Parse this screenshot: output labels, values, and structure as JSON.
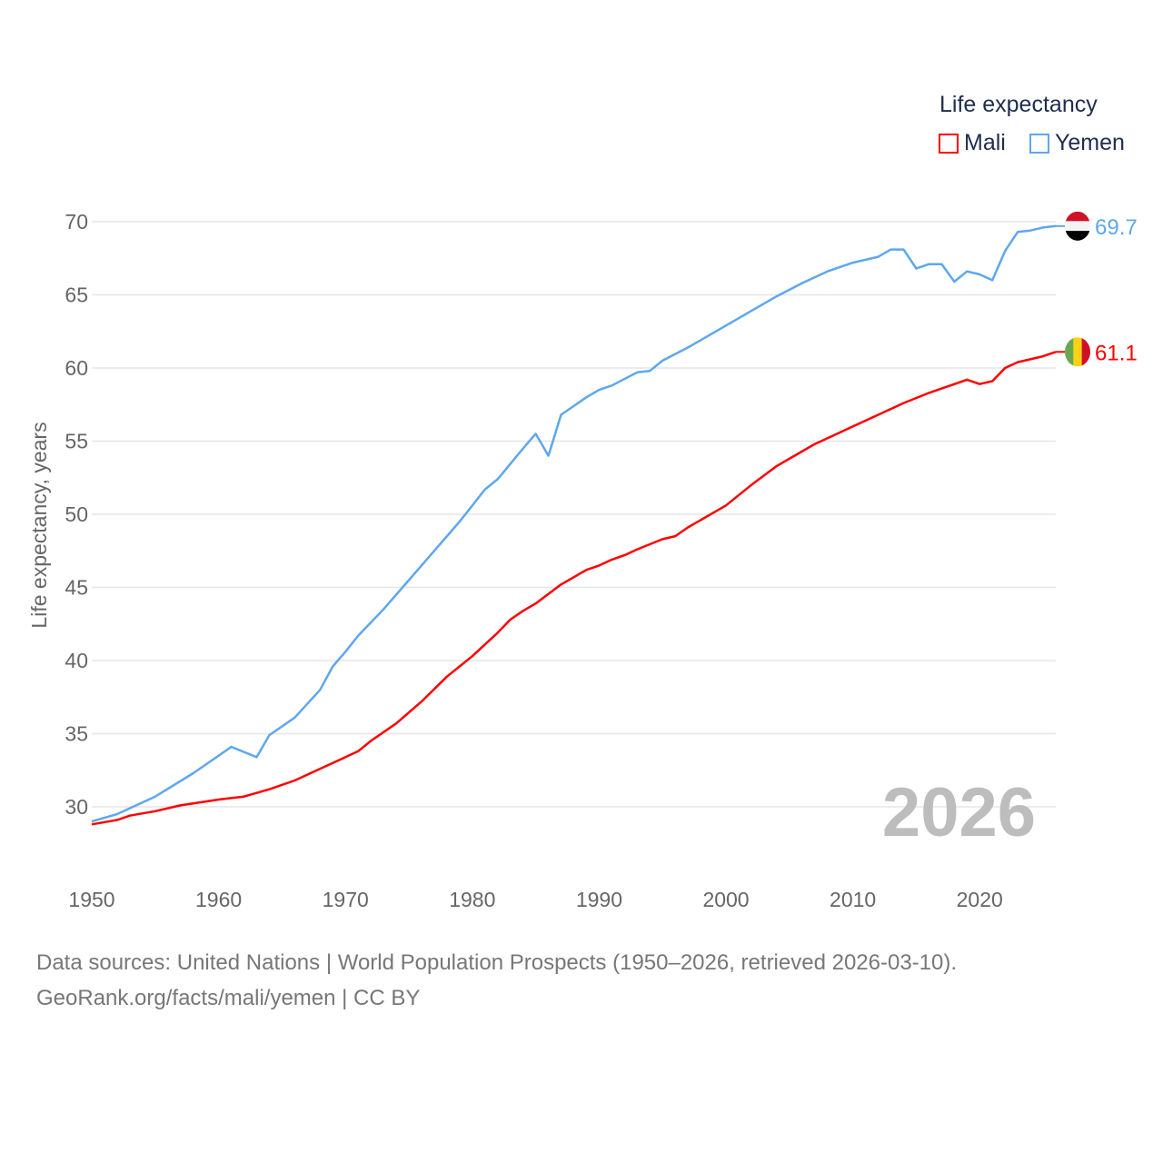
{
  "chart_data": {
    "type": "line",
    "title": "",
    "xlabel": "",
    "ylabel": "Life expectancy, years",
    "xlim": [
      1950,
      2026
    ],
    "ylim": [
      27,
      72
    ],
    "x_ticks": [
      "1950",
      "1960",
      "1970",
      "1980",
      "1990",
      "2000",
      "2010",
      "2020"
    ],
    "y_ticks": [
      "30",
      "35",
      "40",
      "45",
      "50",
      "55",
      "60",
      "65",
      "70"
    ],
    "grid": true,
    "legend": {
      "title": "Life expectancy",
      "placement": "top-right"
    },
    "watermark_year": "2026",
    "series": [
      {
        "name": "Mali",
        "color": "#ff0000",
        "end_label": "61.1",
        "x": [
          1950,
          1952,
          1953,
          1955,
          1957,
          1960,
          1962,
          1964,
          1966,
          1968,
          1969,
          1971,
          1972,
          1974,
          1976,
          1978,
          1980,
          1982,
          1983,
          1984,
          1985,
          1987,
          1989,
          1990,
          1991,
          1992,
          1993,
          1995,
          1996,
          1997,
          2000,
          2002,
          2004,
          2007,
          2010,
          2012,
          2014,
          2016,
          2019,
          2020,
          2021,
          2022,
          2023,
          2025,
          2026
        ],
        "y": [
          28.8,
          29.1,
          29.4,
          29.7,
          30.1,
          30.5,
          30.7,
          31.2,
          31.8,
          32.6,
          33.0,
          33.8,
          34.5,
          35.7,
          37.2,
          38.9,
          40.3,
          41.9,
          42.8,
          43.4,
          43.9,
          45.2,
          46.2,
          46.5,
          46.9,
          47.2,
          47.6,
          48.3,
          48.5,
          49.1,
          50.6,
          52.0,
          53.3,
          54.8,
          56.0,
          56.8,
          57.6,
          58.3,
          59.2,
          58.9,
          59.1,
          60.0,
          60.4,
          60.8,
          61.1
        ]
      },
      {
        "name": "Yemen",
        "color": "#5ea7ef",
        "end_label": "69.7",
        "x": [
          1950,
          1952,
          1955,
          1958,
          1961,
          1963,
          1964,
          1966,
          1968,
          1969,
          1970,
          1971,
          1973,
          1975,
          1977,
          1979,
          1981,
          1982,
          1984,
          1985,
          1986,
          1987,
          1989,
          1990,
          1991,
          1993,
          1994,
          1995,
          1997,
          2000,
          2002,
          2004,
          2006,
          2008,
          2010,
          2012,
          2013,
          2014,
          2015,
          2016,
          2017,
          2018,
          2019,
          2020,
          2021,
          2022,
          2023,
          2024,
          2025,
          2026
        ],
        "y": [
          29.0,
          29.5,
          30.7,
          32.3,
          34.1,
          33.4,
          34.9,
          36.1,
          38.0,
          39.6,
          40.6,
          41.7,
          43.5,
          45.5,
          47.5,
          49.5,
          51.7,
          52.4,
          54.5,
          55.5,
          54.0,
          56.8,
          58.0,
          58.5,
          58.8,
          59.7,
          59.8,
          60.5,
          61.4,
          62.9,
          63.9,
          64.9,
          65.8,
          66.6,
          67.2,
          67.6,
          68.1,
          68.1,
          66.8,
          67.1,
          67.1,
          65.9,
          66.6,
          66.4,
          66.0,
          68.0,
          69.3,
          69.4,
          69.6,
          69.7
        ]
      }
    ]
  },
  "footer": {
    "line1": "Data sources: United Nations | World Population Prospects (1950–2026, retrieved 2026-03-10).",
    "line2": "GeoRank.org/facts/mali/yemen | CC BY"
  }
}
